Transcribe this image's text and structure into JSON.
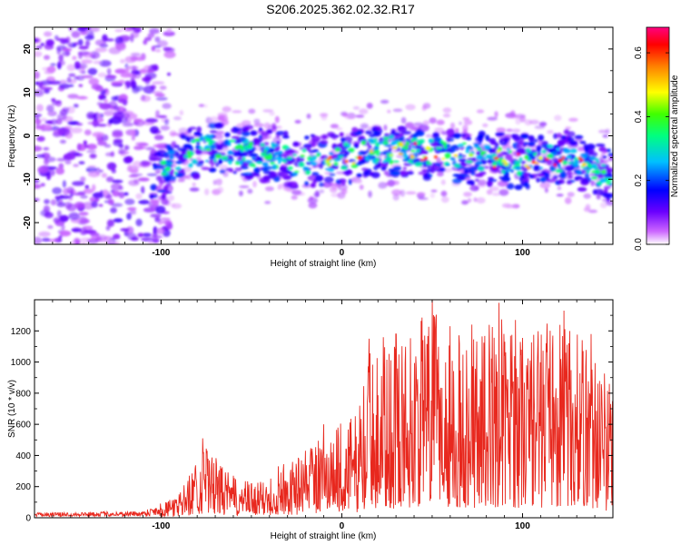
{
  "title": "S206.2025.362.02.32.R17",
  "chart_data": [
    {
      "type": "heatmap",
      "xlabel": "Height of straight line (km)",
      "ylabel": "Frequency (Hz)",
      "xlim": [
        -170,
        150
      ],
      "ylim": [
        -25,
        25
      ],
      "xticks": [
        -100,
        0,
        100
      ],
      "yticks": [
        -20,
        -10,
        0,
        10,
        20
      ],
      "colorbar": {
        "label": "Normalized spectral amplitude",
        "ticks": [
          "0.0",
          "0.2",
          "0.4",
          "0.6"
        ],
        "range": [
          0,
          0.68
        ],
        "colormap": [
          "#ffffff",
          "#cc66ff",
          "#6a00ff",
          "#0000ff",
          "#00c0ff",
          "#00ff80",
          "#40ff00",
          "#ffff00",
          "#ff8000",
          "#ff0000",
          "#ff0080"
        ]
      },
      "band_center_hz": [
        {
          "x": -100,
          "y": -9
        },
        {
          "x": -90,
          "y": -5
        },
        {
          "x": -75,
          "y": -3
        },
        {
          "x": -50,
          "y": -4
        },
        {
          "x": -25,
          "y": -6
        },
        {
          "x": 0,
          "y": -5
        },
        {
          "x": 25,
          "y": -3
        },
        {
          "x": 50,
          "y": -4
        },
        {
          "x": 75,
          "y": -5
        },
        {
          "x": 100,
          "y": -6
        },
        {
          "x": 125,
          "y": -5
        },
        {
          "x": 148,
          "y": -9
        }
      ]
    },
    {
      "type": "line",
      "xlabel": "Height of straight line (km)",
      "ylabel": "SNR (10 * v/v)",
      "xlim": [
        -170,
        150
      ],
      "ylim": [
        0,
        1400
      ],
      "xticks": [
        -100,
        0,
        100
      ],
      "yticks": [
        0,
        200,
        400,
        600,
        800,
        1000,
        1200
      ],
      "color": "#e8281e",
      "peaks": [
        {
          "x": -170,
          "y": 25
        },
        {
          "x": -110,
          "y": 35
        },
        {
          "x": -90,
          "y": 150
        },
        {
          "x": -77,
          "y": 510
        },
        {
          "x": -60,
          "y": 270
        },
        {
          "x": -45,
          "y": 230
        },
        {
          "x": -35,
          "y": 330
        },
        {
          "x": -20,
          "y": 430
        },
        {
          "x": -10,
          "y": 600
        },
        {
          "x": 10,
          "y": 720
        },
        {
          "x": 15,
          "y": 1150
        },
        {
          "x": 30,
          "y": 1180
        },
        {
          "x": 50,
          "y": 1410
        },
        {
          "x": 60,
          "y": 1230
        },
        {
          "x": 72,
          "y": 1240
        },
        {
          "x": 87,
          "y": 1380
        },
        {
          "x": 96,
          "y": 1270
        },
        {
          "x": 123,
          "y": 1330
        },
        {
          "x": 138,
          "y": 1180
        },
        {
          "x": 148,
          "y": 860
        }
      ]
    }
  ]
}
